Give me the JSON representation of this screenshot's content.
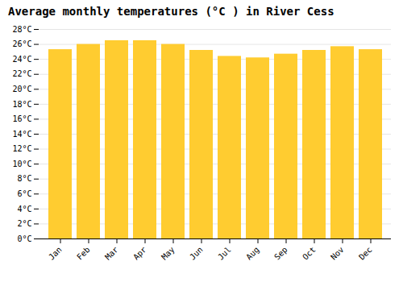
{
  "chart_data": {
    "type": "bar",
    "title": "Average monthly temperatures (°C ) in River Cess",
    "categories": [
      "Jan",
      "Feb",
      "Mar",
      "Apr",
      "May",
      "Jun",
      "Jul",
      "Aug",
      "Sep",
      "Oct",
      "Nov",
      "Dec"
    ],
    "values": [
      25.3,
      26.0,
      26.5,
      26.5,
      26.0,
      25.2,
      24.4,
      24.2,
      24.7,
      25.2,
      25.7,
      25.3
    ],
    "color": "#FFCC30",
    "ylim": [
      0,
      28
    ],
    "yticks": [
      {
        "value": 0,
        "label": "0°C"
      },
      {
        "value": 2,
        "label": "2°C"
      },
      {
        "value": 4,
        "label": "4°C"
      },
      {
        "value": 6,
        "label": "6°C"
      },
      {
        "value": 8,
        "label": "8°C"
      },
      {
        "value": 10,
        "label": "10°C"
      },
      {
        "value": 12,
        "label": "12°C"
      },
      {
        "value": 14,
        "label": "14°C"
      },
      {
        "value": 16,
        "label": "16°C"
      },
      {
        "value": 18,
        "label": "18°C"
      },
      {
        "value": 20,
        "label": "20°C"
      },
      {
        "value": 22,
        "label": "22°C"
      },
      {
        "value": 24,
        "label": "24°C"
      },
      {
        "value": 26,
        "label": "26°C"
      },
      {
        "value": 28,
        "label": "28°C"
      }
    ],
    "grid": true
  }
}
